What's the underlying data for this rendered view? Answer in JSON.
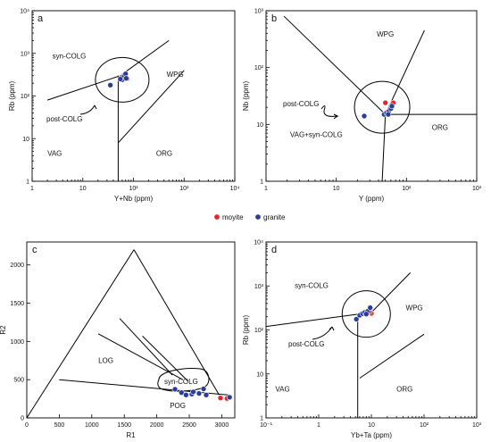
{
  "legend": {
    "items": [
      {
        "label": "moyite",
        "color": "#e8242b"
      },
      {
        "label": "granite",
        "color": "#2b3d9a"
      }
    ]
  },
  "chart_data": [
    {
      "panel": "a",
      "type": "scatter",
      "xlabel": "Y+Nb (ppm)",
      "ylabel": "Rb (ppm)",
      "xscale": "log",
      "yscale": "log",
      "xlim": [
        1,
        10000
      ],
      "ylim": [
        1,
        10000
      ],
      "xticks": [
        "1",
        "10",
        "10²",
        "10³",
        "10⁴"
      ],
      "yticks": [
        "1",
        "10",
        "10²",
        "10³",
        "10⁴"
      ],
      "field_labels": [
        "syn-COLG",
        "WPG",
        "VAG",
        "ORG",
        "post-COLG"
      ],
      "series": [
        {
          "name": "moyite",
          "points": [
            [
              75,
              255
            ],
            [
              58,
              275
            ]
          ]
        },
        {
          "name": "granite",
          "points": [
            [
              35,
              180
            ],
            [
              60,
              240
            ],
            [
              65,
              290
            ],
            [
              70,
              330
            ],
            [
              72,
              260
            ],
            [
              55,
              250
            ]
          ]
        }
      ]
    },
    {
      "panel": "b",
      "type": "scatter",
      "xlabel": "Y (ppm)",
      "ylabel": "Nb (ppm)",
      "xscale": "log",
      "yscale": "log",
      "xlim": [
        1,
        1000
      ],
      "ylim": [
        1,
        1000
      ],
      "xticks": [
        "1",
        "10",
        "10²",
        "10³"
      ],
      "yticks": [
        "1",
        "10",
        "10²",
        "10³"
      ],
      "field_labels": [
        "WPG",
        "VAG+syn-COLG",
        "ORG",
        "post-COLG"
      ],
      "series": [
        {
          "name": "moyite",
          "points": [
            [
              50,
              24
            ],
            [
              65,
              24
            ]
          ]
        },
        {
          "name": "granite",
          "points": [
            [
              25,
              14
            ],
            [
              48,
              15
            ],
            [
              52,
              16
            ],
            [
              56,
              17
            ],
            [
              60,
              19
            ],
            [
              62,
              21
            ],
            [
              55,
              15
            ]
          ]
        }
      ]
    },
    {
      "panel": "c",
      "type": "scatter",
      "xlabel": "R1",
      "ylabel": "R2",
      "xscale": "linear",
      "yscale": "linear",
      "xlim": [
        0,
        3200
      ],
      "ylim": [
        0,
        2300
      ],
      "xticks": [
        "0",
        "500",
        "1000",
        "1500",
        "2000",
        "2500",
        "3000"
      ],
      "yticks": [
        "0",
        "500",
        "1000",
        "1500",
        "2000"
      ],
      "field_labels": [
        "LOG",
        "syn-COLG",
        "POG"
      ],
      "series": [
        {
          "name": "moyite",
          "points": [
            [
              2980,
              260
            ],
            [
              3080,
              255
            ]
          ]
        },
        {
          "name": "granite",
          "points": [
            [
              2280,
              375
            ],
            [
              2380,
              330
            ],
            [
              2450,
              300
            ],
            [
              2540,
              310
            ],
            [
              2560,
              340
            ],
            [
              2650,
              320
            ],
            [
              2720,
              380
            ],
            [
              2760,
              300
            ],
            [
              3120,
              270
            ]
          ]
        }
      ]
    },
    {
      "panel": "d",
      "type": "scatter",
      "xlabel": "Yb+Ta (ppm)",
      "ylabel": "Rb (ppm)",
      "xscale": "log",
      "yscale": "log",
      "xlim": [
        0.1,
        1000
      ],
      "ylim": [
        1,
        10000
      ],
      "xticks": [
        "10⁻¹",
        "1",
        "10",
        "10²",
        "10³"
      ],
      "yticks": [
        "1",
        "10",
        "10²",
        "10³",
        "10⁴"
      ],
      "field_labels": [
        "syn-COLG",
        "WPG",
        "VAG",
        "ORG",
        "post-COLG"
      ],
      "series": [
        {
          "name": "moyite",
          "points": [
            [
              10,
              240
            ],
            [
              9.2,
              260
            ]
          ]
        },
        {
          "name": "granite",
          "points": [
            [
              5.2,
              175
            ],
            [
              6,
              215
            ],
            [
              6.8,
              235
            ],
            [
              7.5,
              250
            ],
            [
              8.5,
              265
            ],
            [
              9.5,
              320
            ],
            [
              8,
              230
            ]
          ]
        }
      ]
    }
  ]
}
